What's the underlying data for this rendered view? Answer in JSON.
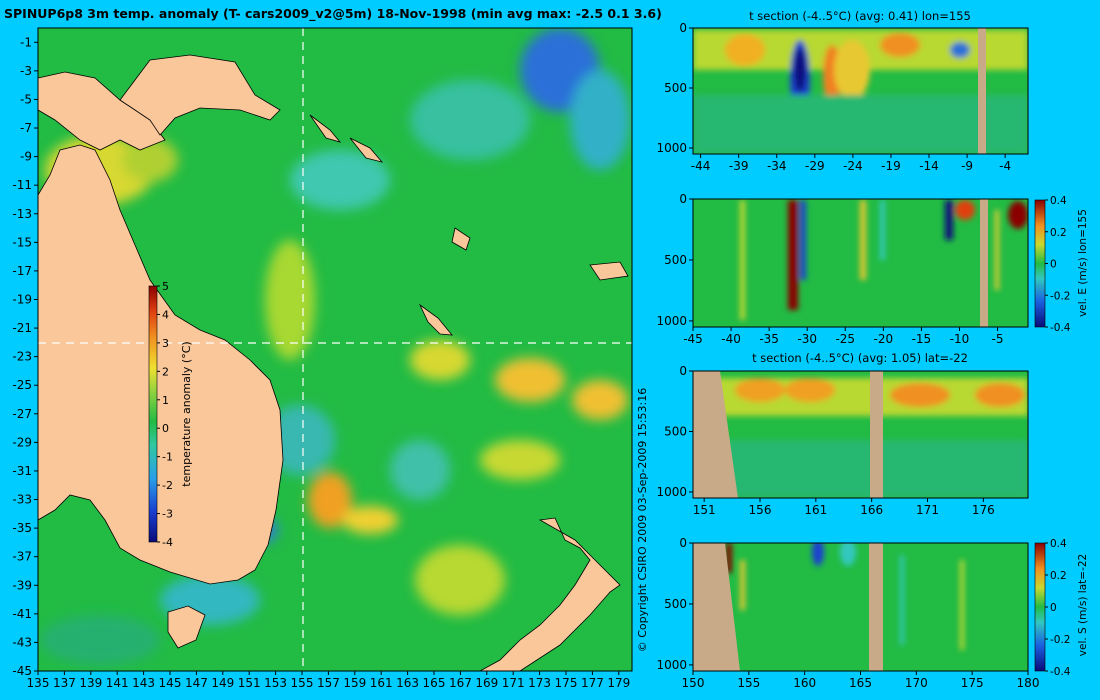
{
  "title": "SPINUP6p8 3m temp. anomaly (T- cars2009_v2@5m) 18-Nov-1998 (min avg max: -2.5 0.1 3.6)",
  "copyright": "© Copyright CSIRO 2009   03-Sep-2009 15:53:16",
  "colors": {
    "background": "#00ccff",
    "land": "#f9c79a",
    "section_land": "#c8aa88",
    "field_base": "#22bb44"
  },
  "chart_data": [
    {
      "type": "heatmap",
      "id": "map",
      "title": "SPINUP6p8 3m temp. anomaly (T- cars2009_v2@5m) 18-Nov-1998 (min avg max: -2.5 0.1 3.6)",
      "xlim": [
        135,
        180
      ],
      "ylim": [
        -45,
        0
      ],
      "x_ticks": [
        "135",
        "137",
        "139",
        "141",
        "143",
        "145",
        "147",
        "149",
        "151",
        "153",
        "155",
        "157",
        "159",
        "161",
        "163",
        "165",
        "167",
        "169",
        "171",
        "173",
        "175",
        "177",
        "179"
      ],
      "y_ticks": [
        "-1",
        "-3",
        "-5",
        "-7",
        "-9",
        "-11",
        "-13",
        "-15",
        "-17",
        "-19",
        "-21",
        "-23",
        "-25",
        "-27",
        "-29",
        "-31",
        "-33",
        "-35",
        "-37",
        "-39",
        "-41",
        "-43",
        "-45"
      ],
      "crosshair": {
        "lon": 155,
        "lat": -22
      },
      "colorbar": {
        "label": "temperature anomaly (°C)",
        "range": [
          -4,
          5
        ],
        "ticks": [
          "5",
          "4",
          "3",
          "2",
          "1",
          "0",
          "-1",
          "-2",
          "-3",
          "-4"
        ]
      },
      "summary": {
        "min": -2.5,
        "avg": 0.1,
        "max": 3.6
      }
    },
    {
      "type": "heatmap",
      "id": "t_section_lon",
      "title": "t section (-4..5°C) (avg: 0.41) lon=155",
      "x_ticks": [
        "-44",
        "-39",
        "-34",
        "-29",
        "-24",
        "-19",
        "-14",
        "-9",
        "-4"
      ],
      "xlim": [
        -45,
        -1
      ],
      "y_ticks": [
        "0",
        "500",
        "1000"
      ],
      "ylim": [
        0,
        1050
      ],
      "average": 0.41
    },
    {
      "type": "heatmap",
      "id": "vel_e_section",
      "title": "",
      "x_ticks": [
        "-45",
        "-40",
        "-35",
        "-30",
        "-25",
        "-20",
        "-15",
        "-10",
        "-5"
      ],
      "xlim": [
        -45,
        -1
      ],
      "y_ticks": [
        "0",
        "500",
        "1000"
      ],
      "ylim": [
        0,
        1050
      ],
      "colorbar": {
        "label": "vel. E (m/s) lon=155",
        "range": [
          -0.4,
          0.4
        ],
        "ticks": [
          "0.4",
          "0.2",
          "0",
          "-0.2",
          "-0.4"
        ]
      }
    },
    {
      "type": "heatmap",
      "id": "t_section_lat",
      "title": "t section (-4..5°C) (avg: 1.05) lat=-22",
      "x_ticks": [
        "151",
        "156",
        "161",
        "166",
        "171",
        "176"
      ],
      "xlim": [
        150,
        180
      ],
      "y_ticks": [
        "0",
        "500",
        "1000"
      ],
      "ylim": [
        0,
        1050
      ],
      "average": 1.05
    },
    {
      "type": "heatmap",
      "id": "vel_s_section",
      "title": "",
      "x_ticks": [
        "150",
        "155",
        "160",
        "165",
        "170",
        "175",
        "180"
      ],
      "xlim": [
        150,
        180
      ],
      "y_ticks": [
        "0",
        "500",
        "1000"
      ],
      "ylim": [
        0,
        1050
      ],
      "colorbar": {
        "label": "vel. S (m/s) lat=-22",
        "range": [
          -0.4,
          0.4
        ],
        "ticks": [
          "0.4",
          "0.2",
          "0",
          "-0.2",
          "-0.4"
        ]
      }
    }
  ]
}
